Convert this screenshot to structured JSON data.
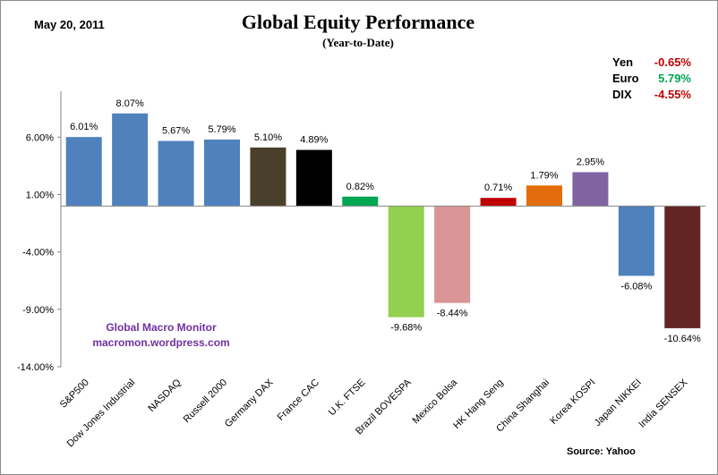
{
  "header": {
    "date": "May 20,  2011",
    "title": "Global Equity Performance",
    "subtitle": "(Year-to-Date)"
  },
  "currencies": [
    {
      "name": "Yen",
      "value": "-0.65%",
      "color": "#c00000"
    },
    {
      "name": "Euro",
      "value": "5.79%",
      "color": "#00a651"
    },
    {
      "name": "DIX",
      "value": "-4.55%",
      "color": "#c00000"
    }
  ],
  "watermark": {
    "line1": "Global  Macro  Monitor",
    "line2": "macromon.wordpress.com"
  },
  "source": "Source:   Yahoo",
  "chart_data": {
    "type": "bar",
    "title": "Global Equity Performance",
    "subtitle": "(Year-to-Date)",
    "categories": [
      "S&P500",
      "Dow Jones Industrial",
      "NASDAQ",
      "Russell 2000",
      "Germany DAX",
      "France CAC",
      "U.K. FTSE",
      "Brazil BOVESPA",
      "Mexico Bolsa",
      "HK Hang Seng",
      "China Shanghai",
      "Korea KOSPI",
      "Japan NIKKEI",
      "India SENSEX"
    ],
    "values": [
      6.01,
      8.07,
      5.67,
      5.79,
      5.1,
      4.89,
      0.82,
      -9.68,
      -8.44,
      0.71,
      1.79,
      2.95,
      -6.08,
      -10.64
    ],
    "data_labels": [
      "6.01%",
      "8.07%",
      "5.67%",
      "5.79%",
      "5.10%",
      "4.89%",
      "0.82%",
      "-9.68%",
      "-8.44%",
      "0.71%",
      "1.79%",
      "2.95%",
      "-6.08%",
      "-10.64%"
    ],
    "colors": [
      "#4f81bd",
      "#4f81bd",
      "#4f81bd",
      "#4f81bd",
      "#4a3f2a",
      "#000000",
      "#00a651",
      "#92d050",
      "#d99694",
      "#c00000",
      "#e46c0a",
      "#8064a2",
      "#4f81bd",
      "#632523"
    ],
    "ylim": [
      -14,
      10
    ],
    "yticks": [
      6,
      1,
      -4,
      -9,
      -14
    ],
    "ytick_labels": [
      "6.00%",
      "1.00%",
      "-4.00%",
      "-9.00%",
      "-14.00%"
    ],
    "xlabel": "",
    "ylabel": "",
    "grid": false,
    "legend": "none"
  }
}
